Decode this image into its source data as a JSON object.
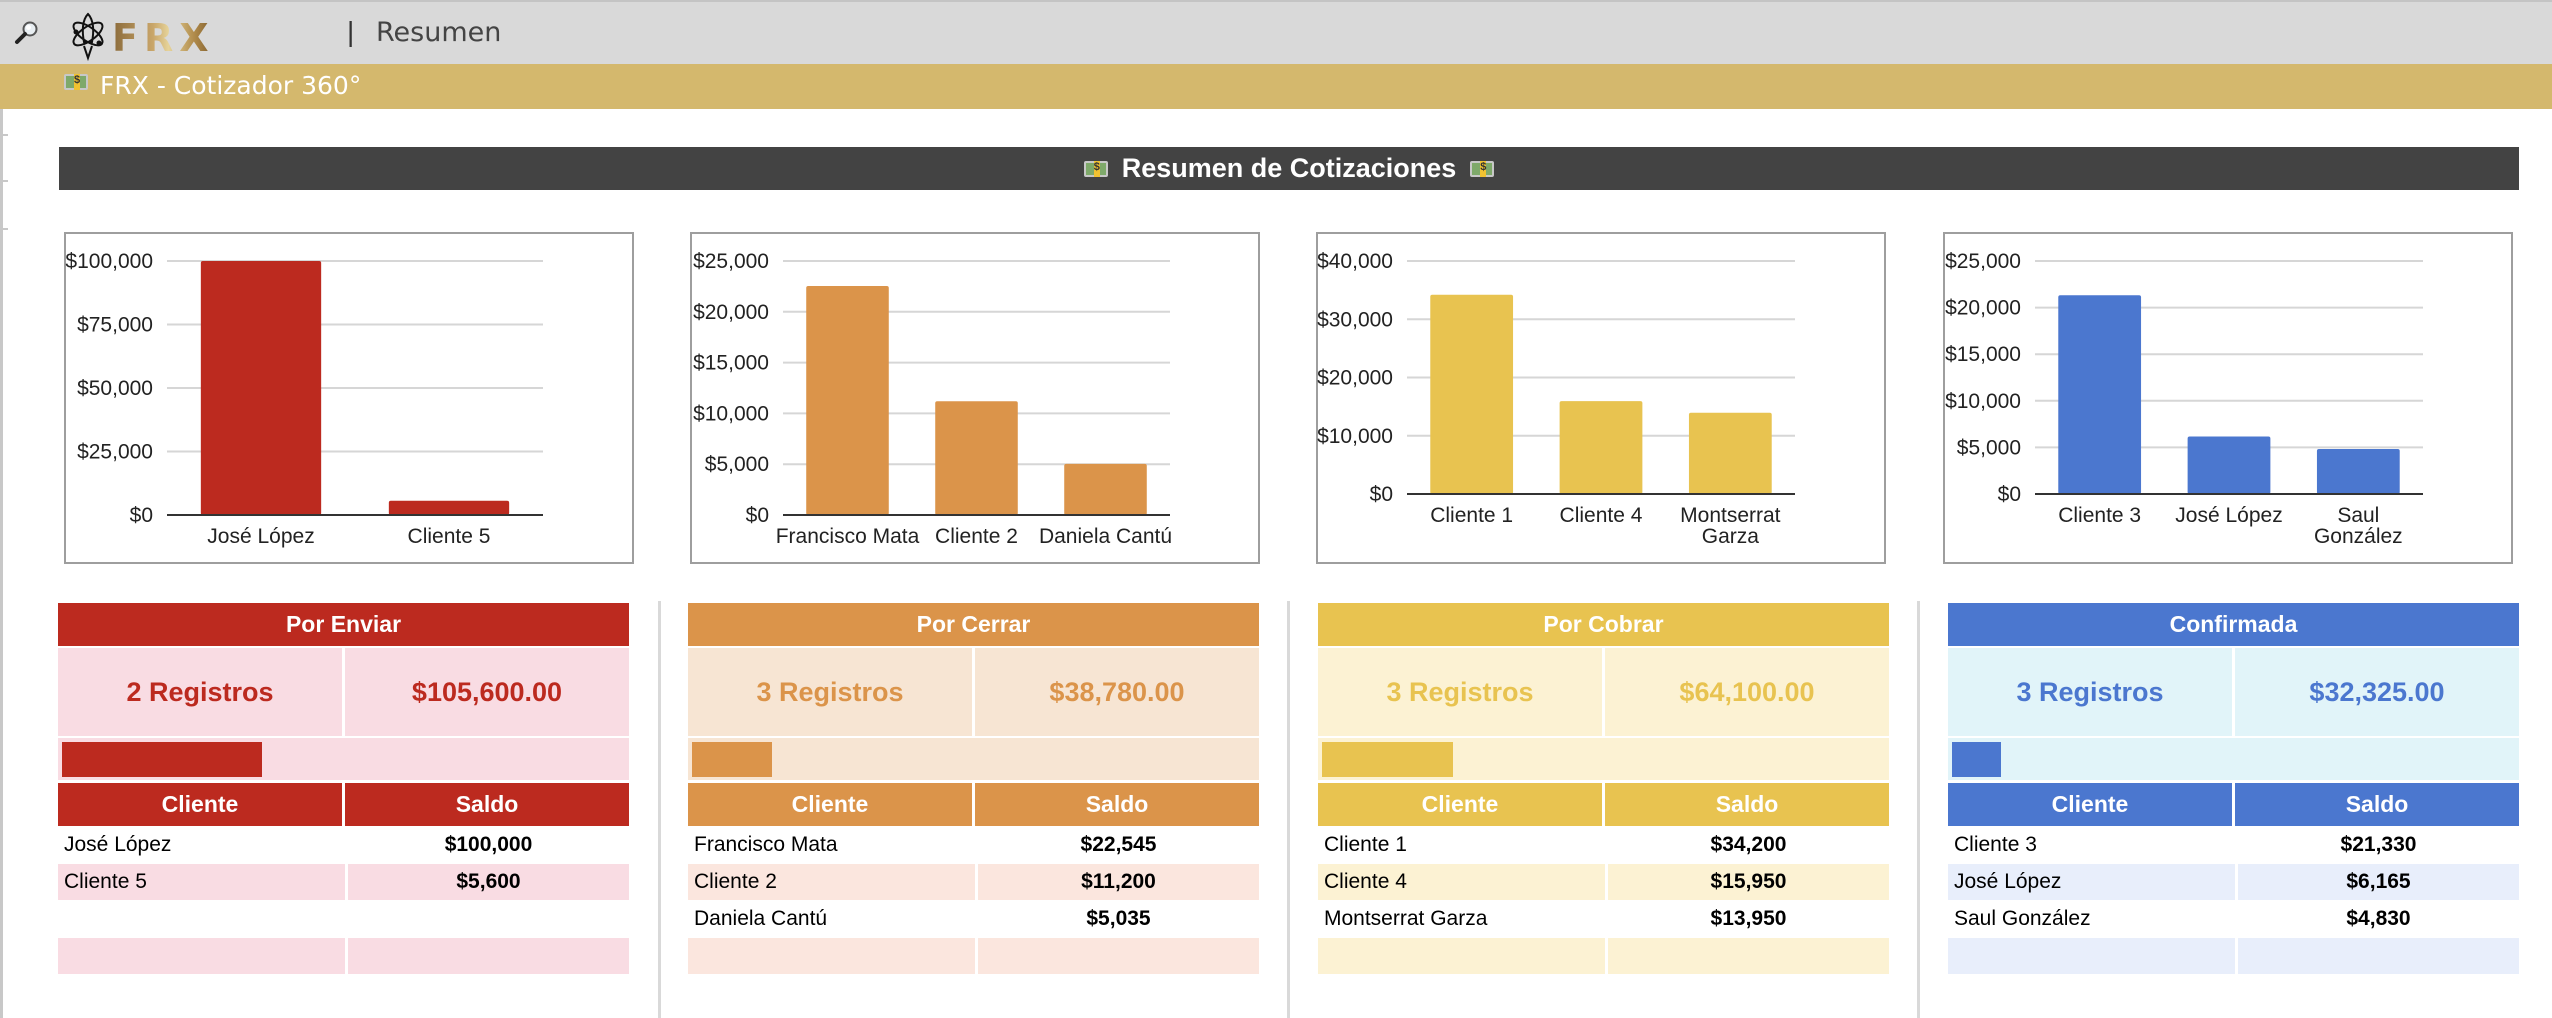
{
  "topbar": {
    "search_icon": "magnifier-icon",
    "logo_text": "FRX",
    "separator": "|",
    "page_name": "Resumen"
  },
  "subheader": {
    "icon": "money-bill-icon",
    "title": "FRX - Cotizador 360°"
  },
  "banner": {
    "title": "Resumen de Cotizaciones",
    "icon": "money-bill-icon"
  },
  "colors": {
    "por_enviar": "#bc2a1f",
    "por_enviar_light": "#f9dce3",
    "por_cerrar": "#db944a",
    "por_cerrar_light": "#f7e5d3",
    "por_cobrar": "#e8c350",
    "por_cobrar_light": "#fcf2d3",
    "confirmada": "#4b77cf",
    "confirmada_light": "#e1f4f9"
  },
  "chart_data": [
    {
      "type": "bar",
      "title": "",
      "xlabel": "",
      "ylabel": "",
      "categories": [
        "José López",
        "Cliente 5"
      ],
      "values": [
        100000,
        5600
      ],
      "ylim": [
        0,
        100000
      ],
      "yticks": [
        0,
        25000,
        50000,
        75000,
        100000
      ],
      "ytick_labels": [
        "$0",
        "$25,000",
        "$50,000",
        "$75,000",
        "$100,000"
      ],
      "color": "#bc2a1f",
      "grid": true
    },
    {
      "type": "bar",
      "title": "",
      "xlabel": "",
      "ylabel": "",
      "categories": [
        "Francisco Mata",
        "Cliente 2",
        "Daniela Cantú"
      ],
      "values": [
        22545,
        11200,
        5035
      ],
      "ylim": [
        0,
        25000
      ],
      "yticks": [
        0,
        5000,
        10000,
        15000,
        20000,
        25000
      ],
      "ytick_labels": [
        "$0",
        "$5,000",
        "$10,000",
        "$15,000",
        "$20,000",
        "$25,000"
      ],
      "color": "#db944a",
      "grid": true
    },
    {
      "type": "bar",
      "title": "",
      "xlabel": "",
      "ylabel": "",
      "categories": [
        "Cliente 1",
        "Cliente 4",
        "Montserrat Garza"
      ],
      "values": [
        34200,
        15950,
        13950
      ],
      "ylim": [
        0,
        40000
      ],
      "yticks": [
        0,
        10000,
        20000,
        30000,
        40000
      ],
      "ytick_labels": [
        "$0",
        "$10,000",
        "$20,000",
        "$30,000",
        "$40,000"
      ],
      "color": "#e8c350",
      "grid": true
    },
    {
      "type": "bar",
      "title": "",
      "xlabel": "",
      "ylabel": "",
      "categories": [
        "Cliente 3",
        "José López",
        "Saul González"
      ],
      "values": [
        21330,
        6165,
        4830
      ],
      "ylim": [
        0,
        25000
      ],
      "yticks": [
        0,
        5000,
        10000,
        15000,
        20000,
        25000
      ],
      "ytick_labels": [
        "$0",
        "$5,000",
        "$10,000",
        "$15,000",
        "$20,000",
        "$25,000"
      ],
      "color": "#4b77cf",
      "grid": true
    }
  ],
  "panels": [
    {
      "title": "Por Enviar",
      "registros": "2 Registros",
      "total": "$105,600.00",
      "progress": 0.35,
      "col_cliente": "Cliente",
      "col_saldo": "Saldo",
      "rows": [
        {
          "cliente": "José López",
          "saldo": "$100,000"
        },
        {
          "cliente": "Cliente 5",
          "saldo": "$5,600"
        },
        {
          "cliente": "",
          "saldo": ""
        },
        {
          "cliente": "",
          "saldo": ""
        }
      ]
    },
    {
      "title": "Por Cerrar",
      "registros": "3 Registros",
      "total": "$38,780.00",
      "progress": 0.14,
      "col_cliente": "Cliente",
      "col_saldo": "Saldo",
      "rows": [
        {
          "cliente": "Francisco Mata",
          "saldo": "$22,545"
        },
        {
          "cliente": "Cliente 2",
          "saldo": "$11,200"
        },
        {
          "cliente": "Daniela Cantú",
          "saldo": "$5,035"
        },
        {
          "cliente": "",
          "saldo": ""
        }
      ]
    },
    {
      "title": "Por Cobrar",
      "registros": "3 Registros",
      "total": "$64,100.00",
      "progress": 0.23,
      "col_cliente": "Cliente",
      "col_saldo": "Saldo",
      "rows": [
        {
          "cliente": "Cliente 1",
          "saldo": "$34,200"
        },
        {
          "cliente": "Cliente 4",
          "saldo": "$15,950"
        },
        {
          "cliente": "Montserrat Garza",
          "saldo": "$13,950"
        },
        {
          "cliente": "",
          "saldo": ""
        }
      ]
    },
    {
      "title": "Confirmada",
      "registros": "3 Registros",
      "total": "$32,325.00",
      "progress": 0.085,
      "col_cliente": "Cliente",
      "col_saldo": "Saldo",
      "rows": [
        {
          "cliente": "Cliente 3",
          "saldo": "$21,330"
        },
        {
          "cliente": "José López",
          "saldo": "$6,165"
        },
        {
          "cliente": "Saul González",
          "saldo": "$4,830"
        },
        {
          "cliente": "",
          "saldo": ""
        }
      ]
    }
  ]
}
